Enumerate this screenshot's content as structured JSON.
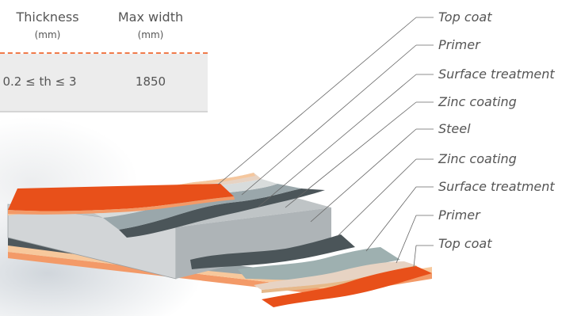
{
  "table": {
    "headers": [
      {
        "name": "Thickness",
        "unit": "(mm)"
      },
      {
        "name": "Max width",
        "unit": "(mm)"
      }
    ],
    "rows": [
      {
        "thickness": "0.2 ≤ th ≤ 3",
        "max_width": "1850"
      }
    ]
  },
  "layers": [
    {
      "label": "Top coat",
      "color": "#e8501a"
    },
    {
      "label": "Primer",
      "color": "#f6c9a4"
    },
    {
      "label": "Surface treatment",
      "color": "#e8d6c8"
    },
    {
      "label": "Zinc coating",
      "color": "#9aa7ab"
    },
    {
      "label": "Steel",
      "color": "#c8ccce"
    },
    {
      "label": "Zinc coating",
      "color": "#4b5559"
    },
    {
      "label": "Surface treatment",
      "color": "#9eb0b0"
    },
    {
      "label": "Primer",
      "color": "#e6b98a"
    },
    {
      "label": "Top coat",
      "color": "#e8501a"
    }
  ]
}
